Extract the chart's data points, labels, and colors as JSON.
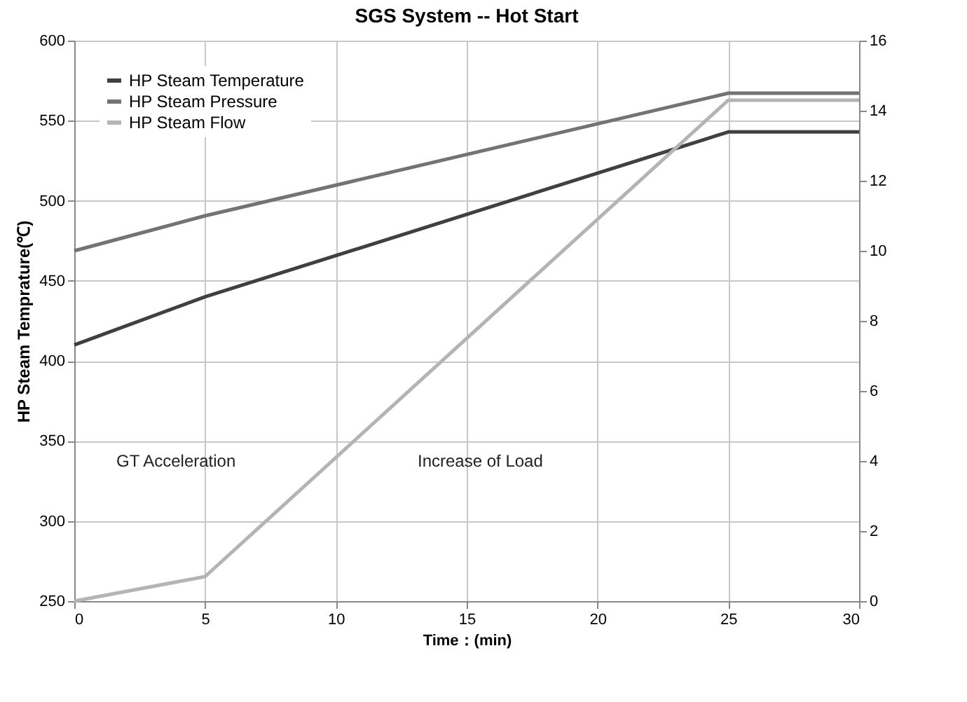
{
  "chart_data": {
    "type": "line",
    "title": "SGS System -- Hot Start",
    "xlabel": "Time：(min)",
    "ylabel": "HP  Steam  Temprature(℃)",
    "x": [
      0,
      5,
      25,
      30
    ],
    "series": [
      {
        "name": "HP Steam Temperature",
        "color": "#404040",
        "values": [
          410,
          440,
          543,
          543
        ]
      },
      {
        "name": "HP Steam Pressure",
        "color": "#737373",
        "values": [
          10.0,
          11.0,
          14.5,
          14.5
        ],
        "axis": "y2"
      },
      {
        "name": "HP Steam Flow",
        "color": "#b4b4b4",
        "values": [
          0,
          0.7,
          14.3,
          14.3
        ],
        "axis": "y2"
      }
    ],
    "xlim": [
      0,
      30
    ],
    "xticks": [
      0,
      5,
      10,
      15,
      20,
      25,
      30
    ],
    "ylim": [
      250,
      600
    ],
    "yticks": [
      250,
      300,
      350,
      400,
      450,
      500,
      550,
      600
    ],
    "y2lim": [
      0,
      16
    ],
    "y2ticks": [
      0,
      2,
      4,
      6,
      8,
      10,
      12,
      14,
      16
    ],
    "annotations": [
      "GT Acceleration",
      "Increase of Load"
    ],
    "grid": true,
    "legend": "top left",
    "marker": "none",
    "line_style": "solid"
  }
}
